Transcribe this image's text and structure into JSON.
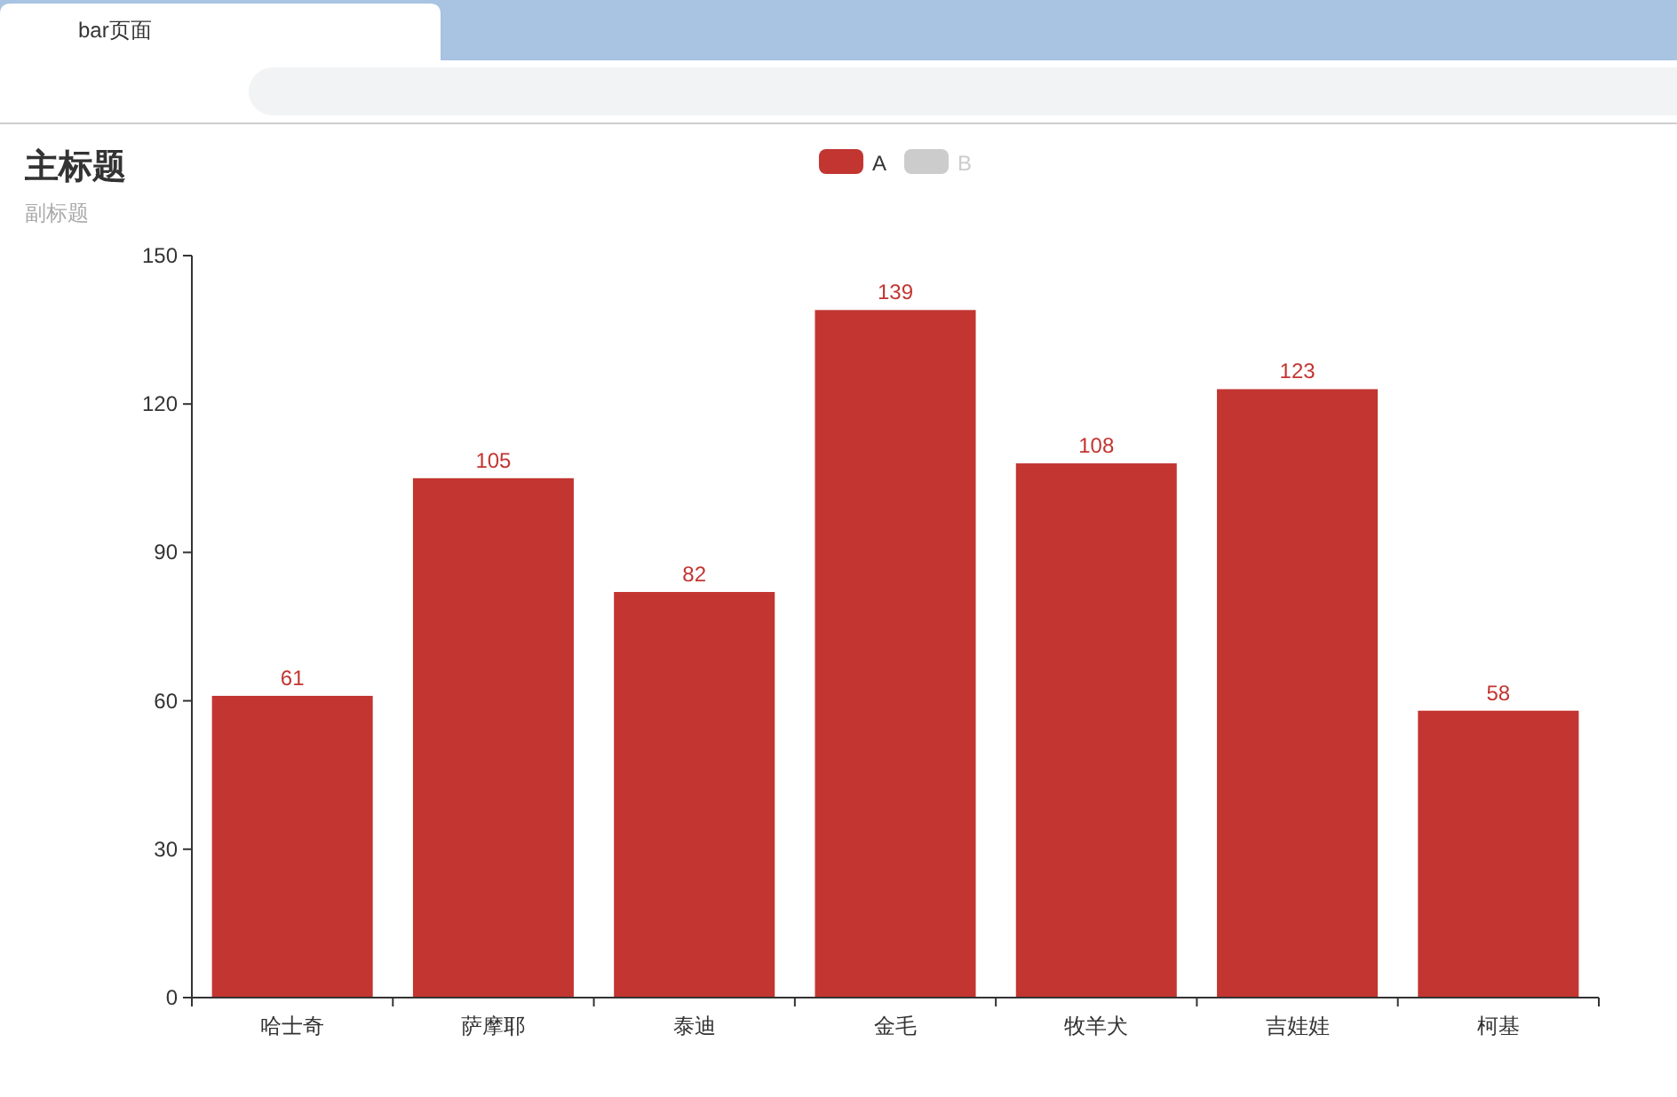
{
  "chart_data": {
    "type": "bar",
    "title": "主标题",
    "subtitle": "副标题",
    "annotations": [
      "bar页面"
    ],
    "categories": [
      "哈士奇",
      "萨摩耶",
      "泰迪",
      "金毛",
      "牧羊犬",
      "吉娃娃",
      "柯基"
    ],
    "series": [
      {
        "name": "A",
        "color": "#c23531",
        "values": [
          61,
          105,
          82,
          139,
          108,
          123,
          58
        ]
      },
      {
        "name": "B",
        "color": "#cccccc",
        "values": [
          null,
          null,
          null,
          null,
          null,
          null,
          null
        ]
      }
    ],
    "ylim": [
      0,
      150
    ],
    "yticks": [
      0,
      30,
      60,
      90,
      120,
      150
    ],
    "data_labels": true,
    "legend": "top",
    "grid": false
  }
}
